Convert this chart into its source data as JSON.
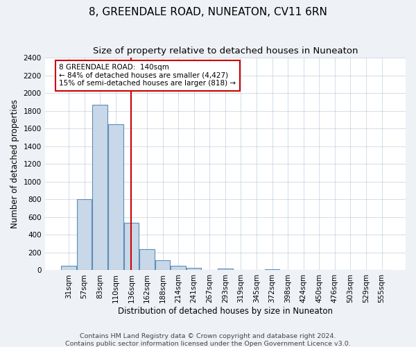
{
  "title": "8, GREENDALE ROAD, NUNEATON, CV11 6RN",
  "subtitle": "Size of property relative to detached houses in Nuneaton",
  "xlabel": "Distribution of detached houses by size in Nuneaton",
  "ylabel": "Number of detached properties",
  "bar_labels": [
    "31sqm",
    "57sqm",
    "83sqm",
    "110sqm",
    "136sqm",
    "162sqm",
    "188sqm",
    "214sqm",
    "241sqm",
    "267sqm",
    "293sqm",
    "319sqm",
    "345sqm",
    "372sqm",
    "398sqm",
    "424sqm",
    "450sqm",
    "476sqm",
    "503sqm",
    "529sqm",
    "555sqm"
  ],
  "bar_values": [
    50,
    800,
    1870,
    1650,
    540,
    235,
    110,
    50,
    30,
    0,
    20,
    0,
    0,
    15,
    0,
    0,
    0,
    0,
    0,
    0,
    0
  ],
  "bar_color": "#c8d8e8",
  "bar_edge_color": "#5b8db8",
  "vline_x": 4,
  "vline_color": "#cc0000",
  "annotation_line1": "8 GREENDALE ROAD:  140sqm",
  "annotation_line2": "← 84% of detached houses are smaller (4,427)",
  "annotation_line3": "15% of semi-detached houses are larger (818) →",
  "ylim": [
    0,
    2400
  ],
  "yticks": [
    0,
    200,
    400,
    600,
    800,
    1000,
    1200,
    1400,
    1600,
    1800,
    2000,
    2200,
    2400
  ],
  "footer_line1": "Contains HM Land Registry data © Crown copyright and database right 2024.",
  "footer_line2": "Contains public sector information licensed under the Open Government Licence v3.0.",
  "bg_color": "#eef2f6",
  "plot_bg_color": "#ffffff",
  "title_fontsize": 11,
  "subtitle_fontsize": 9.5,
  "axis_label_fontsize": 8.5,
  "tick_fontsize": 7.5,
  "footer_fontsize": 6.8
}
